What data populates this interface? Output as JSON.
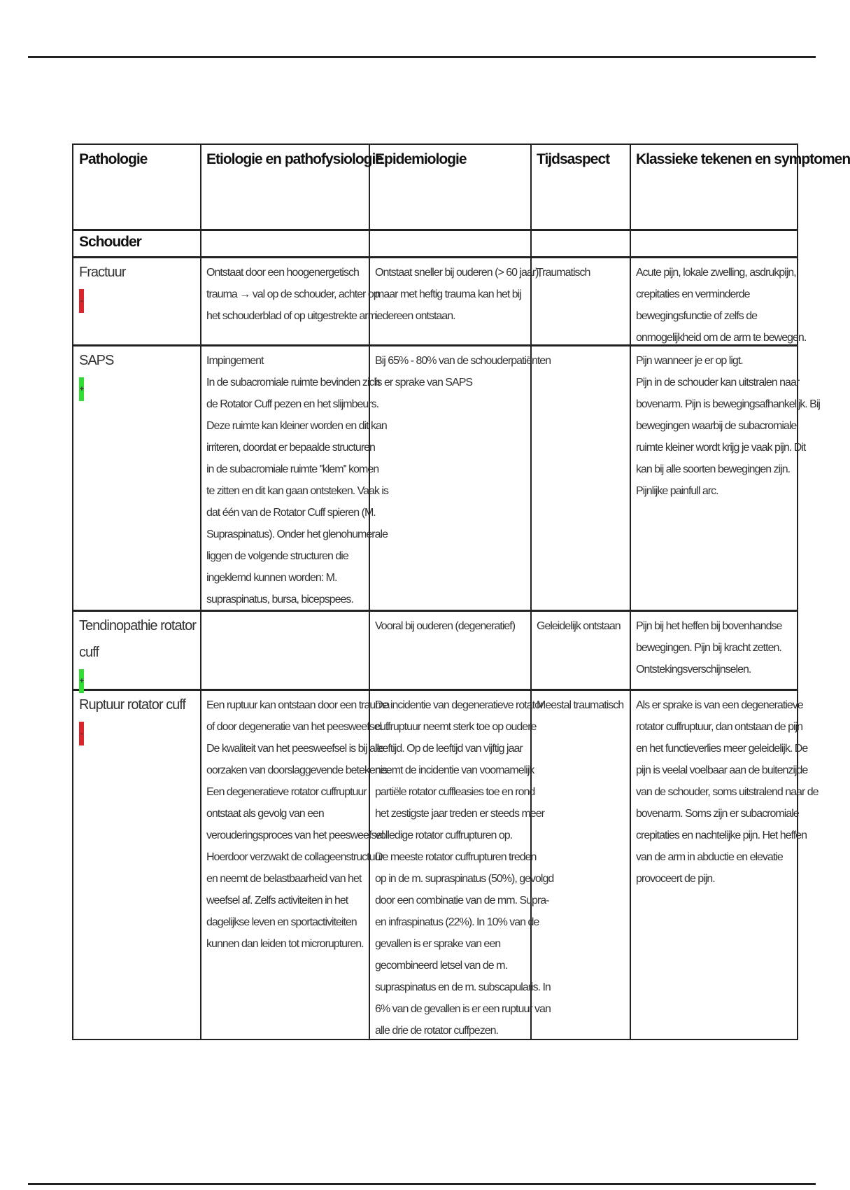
{
  "table": {
    "headers": [
      "Pathologie",
      "Etiologie en pathofysiologie",
      "Epidemiologie",
      "Tijdsaspect",
      "Klassieke tekenen en symptomen"
    ],
    "section": "Schouder",
    "marker_colors": {
      "-": "#d8262c",
      "+": "#33dd33"
    },
    "rows": [
      {
        "name": [
          "Fractuur"
        ],
        "marker": "-",
        "etiologie": [
          "Ontstaat door een hoogenergetisch",
          "trauma → val op de schouder, achter op",
          "het schouderblad of op uitgestrekte arm."
        ],
        "epidemiologie": [
          "Ontstaat sneller bij ouderen (> 60 jaar),",
          "maar met heftig trauma kan het bij",
          "iedereen ontstaan."
        ],
        "tijdsaspect": [
          "Traumatisch"
        ],
        "symptomen": [
          "Acute pijn, lokale zwelling, asdrukpijn,",
          "crepitaties en verminderde",
          "bewegingsfunctie of zelfs de",
          "onmogelijkheid om de arm te bewegen."
        ]
      },
      {
        "name": [
          "SAPS"
        ],
        "marker": "+",
        "etiologie": [
          "Impingement",
          "In de subacromiale ruimte bevinden zich",
          "de Rotator Cuff pezen en het slijmbeurs.",
          "Deze ruimte kan kleiner worden en dit kan",
          "irriteren, doordat er bepaalde structuren",
          "in de subacromiale ruimte ''klem'' komen",
          "te zitten en dit kan gaan ontsteken. Vaak is",
          "dat één van de Rotator Cuff spieren (M.",
          "Supraspinatus). Onder het glenohumerale",
          "liggen de volgende structuren die",
          "ingeklemd kunnen worden: M.",
          "supraspinatus, bursa, bicepspees."
        ],
        "epidemiologie": [
          "Bij 65% - 80% van de schouderpatiënten",
          "is er sprake van SAPS"
        ],
        "tijdsaspect": [],
        "symptomen": [
          "Pijn wanneer je er op ligt.",
          "Pijn in de schouder  kan uitstralen naar",
          "bovenarm. Pijn is bewegingsafhankelijk. Bij",
          "bewegingen waarbij de subacromiale",
          "ruimte kleiner wordt krijg je vaak pijn. Dit",
          "kan bij alle soorten bewegingen zijn.",
          "Pijnlijke painfull arc."
        ]
      },
      {
        "name": [
          "Tendinopathie rotator",
          "cuff"
        ],
        "marker": "+",
        "etiologie": [],
        "epidemiologie": [
          "Vooral bij ouderen (degeneratief)"
        ],
        "tijdsaspect": [
          "Geleidelijk ontstaan"
        ],
        "symptomen": [
          "Pijn bij het heffen bij bovenhandse",
          "bewegingen. Pijn bij kracht zetten.",
          "Ontstekingsverschijnselen."
        ]
      },
      {
        "name": [
          "Ruptuur rotator cuff"
        ],
        "marker": "-",
        "etiologie": [
          "Een ruptuur kan ontstaan door een trauma",
          "of door degeneratie van het peesweefsel. .",
          "De kwaliteit van het peesweefsel is bij alle",
          "oorzaken van doorslaggevende betekenis.",
          "Een degeneratieve rotator cuffruptuur",
          "ontstaat als gevolg van een",
          "verouderingsproces van het peesweefsel.",
          "Hoerdoor verzwakt de collageenstructuur",
          "en neemt de belastbaarheid van het",
          "weefsel af. Zelfs activiteiten in het",
          "dagelijkse leven en sportactiviteiten",
          "kunnen dan leiden tot microrupturen."
        ],
        "epidemiologie": [
          "De incidentie van degeneratieve rotator",
          "cuffruptuur neemt sterk toe op oudere",
          "leeftijd. Op de leeftijd van vijftig jaar",
          "neemt de incidentie van voornamelijk",
          "partiële rotator cuffleasies toe en rond",
          "het zestigste jaar treden er steeds meer",
          "volledige rotator cuffrupturen op.",
          "De meeste rotator cuffrupturen treden",
          "op in de m. supraspinatus (50%), gevolgd",
          "door een combinatie van de mm. Supra-",
          "en infraspinatus (22%). In 10% van de",
          "gevallen is er sprake van een",
          "gecombineerd letsel van de m.",
          "supraspinatus en de m. subscapularis. In",
          "6% van de gevallen is er een ruptuur van",
          "alle drie de rotator cuffpezen."
        ],
        "tijdsaspect": [
          "Meestal traumatisch"
        ],
        "symptomen": [
          "Als er sprake is van een degeneratieve",
          "rotator cuffruptuur, dan ontstaan de pijn",
          "en het functieverlies meer geleidelijk. De",
          "pijn is veelal voelbaar aan de buitenzijde",
          "van de schouder, soms uitstralend naar de",
          "bovenarm. Soms zijn er subacromiale",
          "crepitaties en nachtelijke pijn. Het heffen",
          "van de arm in abductie en elevatie",
          "provoceert de pijn."
        ]
      }
    ]
  }
}
